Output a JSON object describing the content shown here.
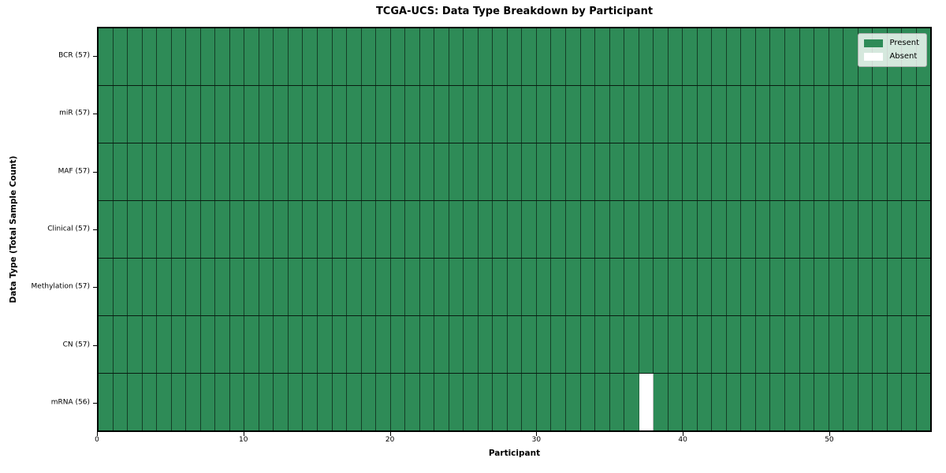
{
  "chart_data": {
    "type": "heatmap",
    "title": "TCGA-UCS: Data Type Breakdown by Participant",
    "xlabel": "Participant",
    "ylabel": "Data Type (Total Sample Count)",
    "x_range": [
      0,
      57
    ],
    "x_ticks": [
      0,
      10,
      20,
      30,
      40,
      50
    ],
    "n_participants": 57,
    "rows": [
      {
        "label": "BCR (57)",
        "data_type": "BCR",
        "total": 57,
        "absent_participants": []
      },
      {
        "label": "miR (57)",
        "data_type": "miR",
        "total": 57,
        "absent_participants": []
      },
      {
        "label": "MAF (57)",
        "data_type": "MAF",
        "total": 57,
        "absent_participants": []
      },
      {
        "label": "Clinical (57)",
        "data_type": "Clinical",
        "total": 57,
        "absent_participants": []
      },
      {
        "label": "Methylation (57)",
        "data_type": "Methylation",
        "total": 57,
        "absent_participants": []
      },
      {
        "label": "CN (57)",
        "data_type": "CN",
        "total": 57,
        "absent_participants": []
      },
      {
        "label": "mRNA (56)",
        "data_type": "mRNA",
        "total": 56,
        "absent_participants": [
          37
        ]
      }
    ],
    "colors": {
      "present": "#2e8b57",
      "absent": "#ffffff"
    },
    "legend": [
      {
        "label": "Present",
        "color": "#2e8b57"
      },
      {
        "label": "Absent",
        "color": "#ffffff"
      }
    ],
    "legend_position": "upper right",
    "grid": true
  }
}
